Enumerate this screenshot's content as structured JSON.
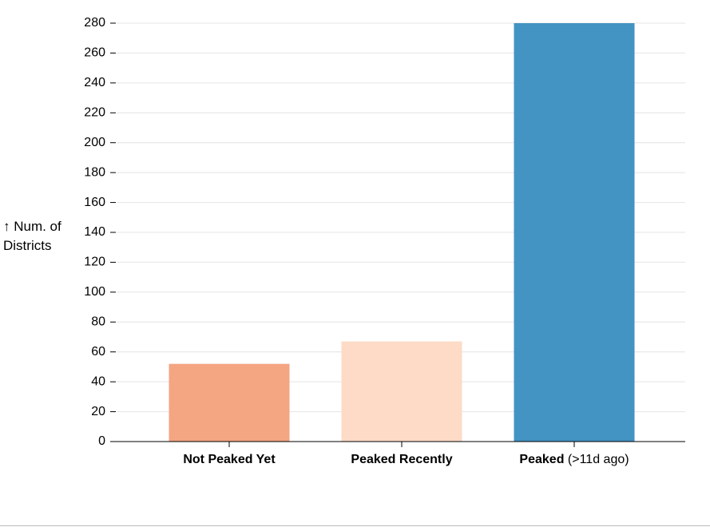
{
  "chart_data": {
    "type": "bar",
    "y_label": "↑ Num. of Districts",
    "categories": [
      "Not Peaked Yet",
      "Peaked Recently",
      "Peaked (>11d ago)"
    ],
    "values": [
      52,
      67,
      280
    ],
    "colors": [
      "#f4a582",
      "#fddbc7",
      "#4393c3"
    ],
    "ylim": [
      0,
      280
    ],
    "yticks": [
      0,
      20,
      40,
      60,
      80,
      100,
      120,
      140,
      160,
      180,
      200,
      220,
      240,
      260,
      280
    ],
    "grid": true
  }
}
